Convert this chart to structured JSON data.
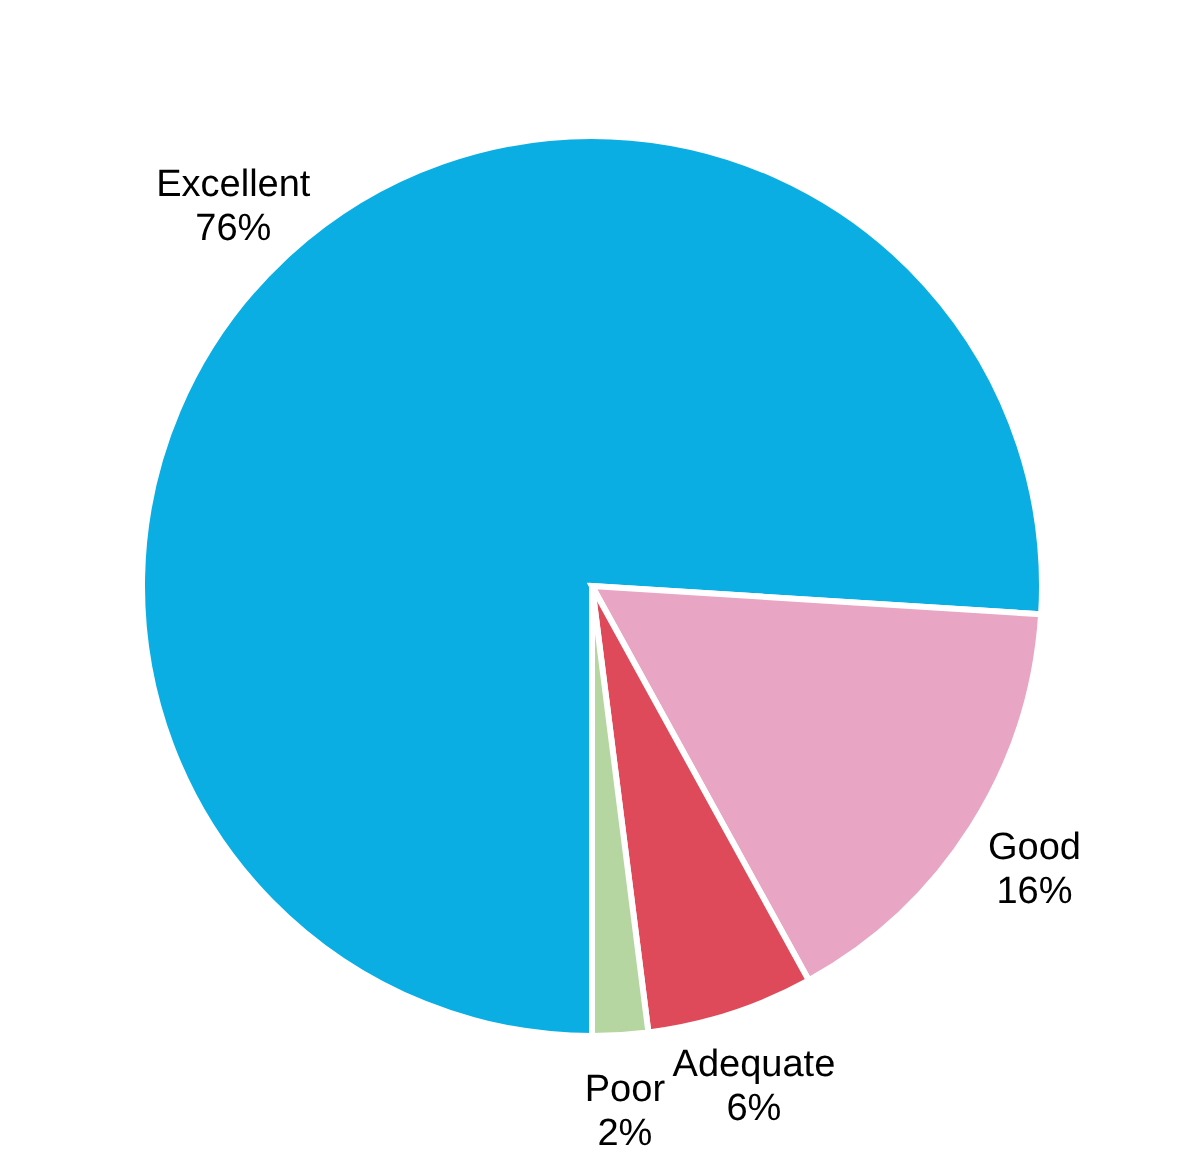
{
  "chart_data": {
    "type": "pie",
    "categories": [
      "Excellent",
      "Good",
      "Adequate",
      "Poor"
    ],
    "values": [
      76,
      16,
      6,
      2
    ],
    "value_labels": [
      "76%",
      "16%",
      "6%",
      "2%"
    ],
    "colors": [
      "#0aaee3",
      "#e9a5c4",
      "#de4a5a",
      "#b5d6a0"
    ],
    "legend": false
  }
}
